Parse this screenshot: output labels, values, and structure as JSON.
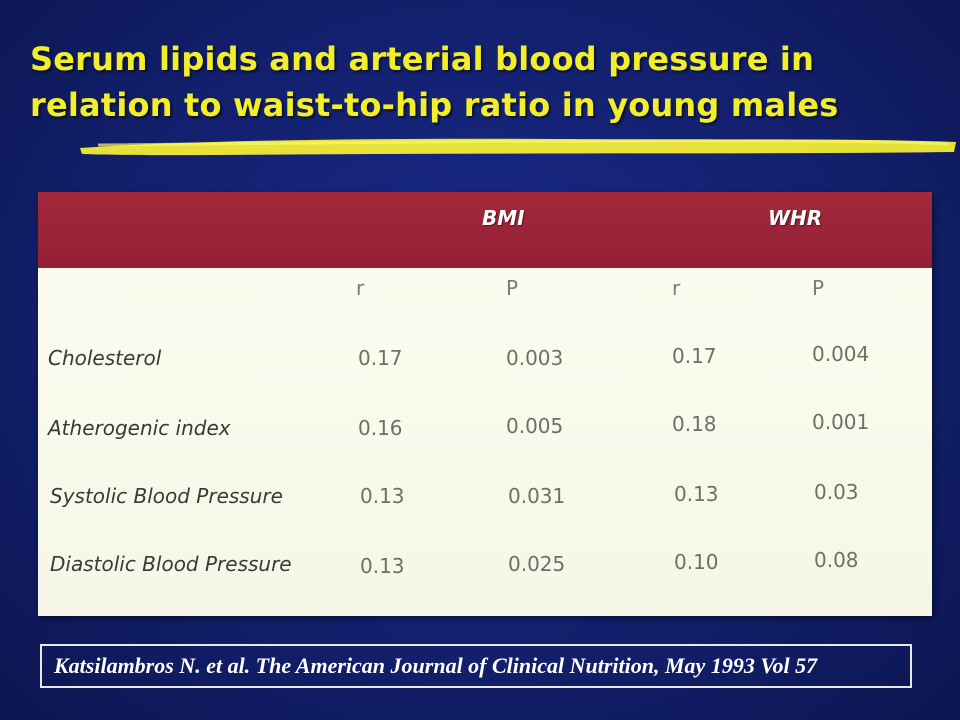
{
  "slide": {
    "title": "Serum lipids and arterial blood pressure in relation to waist-to-hip ratio in young males",
    "citation": "Katsilambros N. et al. The American Journal of Clinical Nutrition, May 1993 Vol 57"
  },
  "colors": {
    "background": "#13206e",
    "title": "#f3ee2a",
    "header": "#a3283b",
    "table_body": "#f8f8ec"
  },
  "table": {
    "groups": [
      "BMI",
      "WHR"
    ],
    "subheaders": [
      "r",
      "P",
      "r",
      "P"
    ],
    "rows": [
      {
        "label": "Cholesterol",
        "values": [
          "0.17",
          "0.003",
          "0.17",
          "0.004"
        ]
      },
      {
        "label": "Atherogenic index",
        "values": [
          "0.16",
          "0.005",
          "0.18",
          "0.001"
        ]
      },
      {
        "label": "Systolic Blood Pressure",
        "values": [
          "0.13",
          "0.031",
          "0.13",
          "0.03"
        ]
      },
      {
        "label": "Diastolic Blood Pressure",
        "values": [
          "0.13",
          "0.025",
          "0.10",
          "0.08"
        ]
      }
    ]
  }
}
